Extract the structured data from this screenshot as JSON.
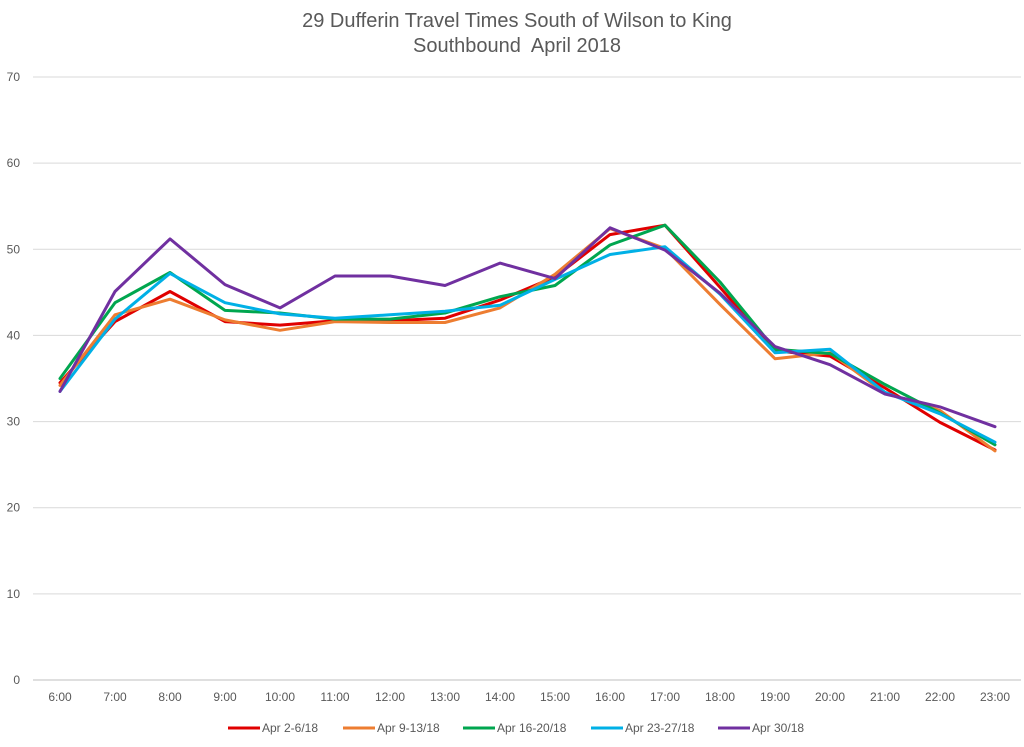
{
  "chart_data": {
    "type": "line",
    "title": "29 Dufferin Travel Times South of Wilson to King",
    "subtitle": "Southbound  April 2018",
    "xlabel": "",
    "ylabel": "",
    "ylim": [
      0,
      70
    ],
    "yticks": [
      "0",
      "10",
      "20",
      "30",
      "40",
      "50",
      "60",
      "70"
    ],
    "grid": true,
    "legend_position": "bottom",
    "categories": [
      "6:00",
      "7:00",
      "8:00",
      "9:00",
      "10:00",
      "11:00",
      "12:00",
      "13:00",
      "14:00",
      "15:00",
      "16:00",
      "17:00",
      "18:00",
      "19:00",
      "20:00",
      "21:00",
      "22:00",
      "23:00"
    ],
    "series": [
      {
        "name": "Apr 2-6/18",
        "color": "#e00000",
        "values": [
          34.5,
          41.6,
          45.1,
          41.6,
          41.2,
          41.7,
          41.7,
          42.0,
          44.1,
          46.8,
          51.7,
          52.8,
          45.6,
          38.2,
          37.6,
          33.9,
          29.9,
          26.7
        ]
      },
      {
        "name": "Apr 9-13/18",
        "color": "#ed7d31",
        "values": [
          34.2,
          42.4,
          44.2,
          41.8,
          40.6,
          41.6,
          41.5,
          41.5,
          43.2,
          47.1,
          52.4,
          50.1,
          43.6,
          37.3,
          38.0,
          33.3,
          31.3,
          26.6
        ]
      },
      {
        "name": "Apr 16-20/18",
        "color": "#00a64f",
        "values": [
          35.0,
          43.8,
          47.3,
          42.9,
          42.6,
          41.9,
          41.9,
          42.6,
          44.5,
          45.8,
          50.5,
          52.8,
          46.2,
          38.4,
          37.9,
          34.3,
          31.0,
          27.3
        ]
      },
      {
        "name": "Apr 23-27/18",
        "color": "#00b0e6",
        "values": [
          33.5,
          41.9,
          47.2,
          43.8,
          42.5,
          42.0,
          42.4,
          42.8,
          43.5,
          46.5,
          49.4,
          50.3,
          44.8,
          38.0,
          38.4,
          33.4,
          30.9,
          27.6
        ]
      },
      {
        "name": "Apr 30/18",
        "color": "#7030a0",
        "values": [
          33.5,
          45.1,
          51.2,
          45.9,
          43.2,
          46.9,
          46.9,
          45.8,
          48.4,
          46.6,
          52.5,
          49.9,
          44.9,
          38.7,
          36.6,
          33.2,
          31.7,
          29.4
        ]
      }
    ]
  }
}
